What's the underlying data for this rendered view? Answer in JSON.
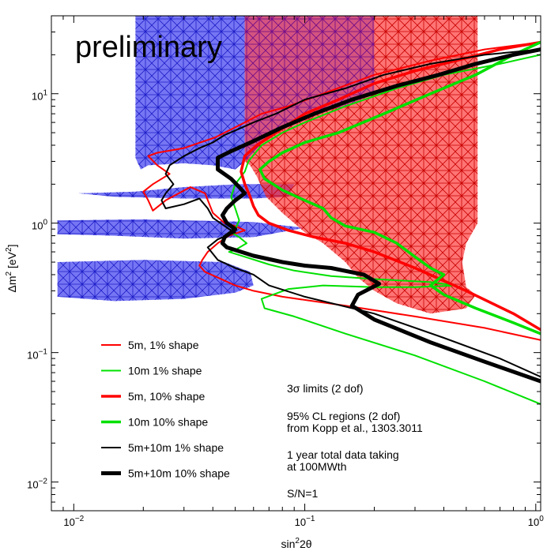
{
  "chart_data": {
    "type": "line",
    "title": "",
    "watermark": "preliminary",
    "xlabel": "sin²2θ",
    "ylabel": "Δm² [eV²]",
    "xscale": "log",
    "yscale": "log",
    "xlim": [
      0.008,
      1.05
    ],
    "ylim": [
      0.006,
      40
    ],
    "xticks": [
      {
        "value": 0.01,
        "base": "10",
        "exp": "−2"
      },
      {
        "value": 0.1,
        "base": "10",
        "exp": "−1"
      },
      {
        "value": 1,
        "base": "10",
        "exp": "0"
      }
    ],
    "yticks": [
      {
        "value": 0.01,
        "base": "10",
        "exp": "−2"
      },
      {
        "value": 0.1,
        "base": "10",
        "exp": "−1"
      },
      {
        "value": 1,
        "base": "10",
        "exp": "0"
      },
      {
        "value": 10,
        "base": "10",
        "exp": "1"
      }
    ],
    "grid": false,
    "legend_position": "bottom-left",
    "regions": [
      {
        "name": "blue-allowed-region",
        "color": "#3838e0",
        "hatch": "#1e1ec8",
        "parts": [
          [
            [
              0.0185,
              40
            ],
            [
              0.055,
              40
            ],
            [
              0.055,
              3.0
            ],
            [
              0.05,
              2.6
            ],
            [
              0.04,
              2.8
            ],
            [
              0.03,
              2.9
            ],
            [
              0.021,
              2.8
            ],
            [
              0.0195,
              2.6
            ],
            [
              0.0185,
              3.2
            ]
          ],
          [
            [
              0.0105,
              1.7
            ],
            [
              0.0185,
              1.75
            ],
            [
              0.03,
              1.9
            ],
            [
              0.052,
              2.0
            ],
            [
              0.09,
              2.0
            ],
            [
              0.085,
              1.6
            ],
            [
              0.06,
              1.55
            ],
            [
              0.03,
              1.55
            ],
            [
              0.015,
              1.6
            ]
          ],
          [
            [
              0.0085,
              1.05
            ],
            [
              0.02,
              1.07
            ],
            [
              0.06,
              1.02
            ],
            [
              0.1,
              0.92
            ],
            [
              0.06,
              0.78
            ],
            [
              0.03,
              0.76
            ],
            [
              0.015,
              0.8
            ],
            [
              0.0085,
              0.82
            ]
          ],
          [
            [
              0.0085,
              0.5
            ],
            [
              0.02,
              0.52
            ],
            [
              0.045,
              0.5
            ],
            [
              0.058,
              0.42
            ],
            [
              0.06,
              0.33
            ],
            [
              0.05,
              0.29
            ],
            [
              0.03,
              0.26
            ],
            [
              0.015,
              0.25
            ],
            [
              0.0085,
              0.27
            ]
          ]
        ]
      },
      {
        "name": "red-allowed-region",
        "color": "#ff3030",
        "hatch": "#d41010",
        "parts": [
          [
            [
              0.055,
              40
            ],
            [
              0.56,
              40
            ],
            [
              0.56,
              1.0
            ],
            [
              0.5,
              0.7
            ],
            [
              0.48,
              0.5
            ],
            [
              0.5,
              0.32
            ],
            [
              0.55,
              0.28
            ],
            [
              0.5,
              0.22
            ],
            [
              0.35,
              0.2
            ],
            [
              0.25,
              0.24
            ],
            [
              0.2,
              0.3
            ],
            [
              0.17,
              0.38
            ],
            [
              0.15,
              0.5
            ],
            [
              0.12,
              0.7
            ],
            [
              0.1,
              0.85
            ],
            [
              0.08,
              1.2
            ],
            [
              0.068,
              1.6
            ],
            [
              0.062,
              2.3
            ],
            [
              0.058,
              2.8
            ],
            [
              0.055,
              3.0
            ]
          ]
        ]
      },
      {
        "name": "purple-overlap",
        "color": "#9040b0",
        "hatch": "#7020a0",
        "parts": [
          [
            [
              0.055,
              40
            ],
            [
              0.2,
              40
            ],
            [
              0.2,
              10
            ],
            [
              0.15,
              8
            ],
            [
              0.1,
              7
            ],
            [
              0.07,
              5
            ],
            [
              0.06,
              3.5
            ],
            [
              0.055,
              3.0
            ]
          ]
        ]
      }
    ],
    "series": [
      {
        "name": "5m, 1% shape",
        "color": "#ff0000",
        "width": 2,
        "points": [
          [
            1.05,
            25
          ],
          [
            0.6,
            22
          ],
          [
            0.35,
            18
          ],
          [
            0.2,
            14
          ],
          [
            0.12,
            10
          ],
          [
            0.085,
            8
          ],
          [
            0.065,
            7
          ],
          [
            0.05,
            5.5
          ],
          [
            0.041,
            4.6
          ],
          [
            0.03,
            3.8
          ],
          [
            0.023,
            3.5
          ],
          [
            0.021,
            3.3
          ],
          [
            0.023,
            2.8
          ],
          [
            0.026,
            2.4
          ],
          [
            0.022,
            2.0
          ],
          [
            0.02,
            1.75
          ],
          [
            0.021,
            1.5
          ],
          [
            0.022,
            1.25
          ],
          [
            0.025,
            1.5
          ],
          [
            0.032,
            1.9
          ],
          [
            0.037,
            1.7
          ],
          [
            0.04,
            1.2
          ],
          [
            0.045,
            1.0
          ],
          [
            0.05,
            0.95
          ],
          [
            0.055,
            0.88
          ],
          [
            0.047,
            0.8
          ],
          [
            0.042,
            0.7
          ],
          [
            0.038,
            0.6
          ],
          [
            0.036,
            0.52
          ],
          [
            0.035,
            0.47
          ],
          [
            0.037,
            0.42
          ],
          [
            0.042,
            0.38
          ],
          [
            0.05,
            0.33
          ],
          [
            0.06,
            0.3
          ],
          [
            0.08,
            0.27
          ],
          [
            0.15,
            0.23
          ],
          [
            0.3,
            0.19
          ],
          [
            0.6,
            0.155
          ],
          [
            1.05,
            0.125
          ]
        ]
      },
      {
        "name": "10m 1% shape",
        "color": "#00e000",
        "width": 2,
        "points": [
          [
            1.05,
            20
          ],
          [
            0.7,
            17
          ],
          [
            0.4,
            14
          ],
          [
            0.25,
            11
          ],
          [
            0.15,
            8
          ],
          [
            0.1,
            6
          ],
          [
            0.08,
            5
          ],
          [
            0.065,
            4
          ],
          [
            0.057,
            3.0
          ],
          [
            0.055,
            2.5
          ],
          [
            0.05,
            2.0
          ],
          [
            0.048,
            1.6
          ],
          [
            0.05,
            1.3
          ],
          [
            0.052,
            1.05
          ],
          [
            0.05,
            0.9
          ],
          [
            0.048,
            0.85
          ],
          [
            0.052,
            0.78
          ],
          [
            0.056,
            0.7
          ],
          [
            0.05,
            0.62
          ],
          [
            0.047,
            0.6
          ],
          [
            0.055,
            0.55
          ],
          [
            0.07,
            0.48
          ],
          [
            0.09,
            0.43
          ],
          [
            0.13,
            0.39
          ],
          [
            0.2,
            0.37
          ],
          [
            0.35,
            0.35
          ],
          [
            0.45,
            0.33
          ],
          [
            0.3,
            0.32
          ],
          [
            0.2,
            0.32
          ],
          [
            0.12,
            0.33
          ],
          [
            0.085,
            0.31
          ],
          [
            0.065,
            0.26
          ],
          [
            0.067,
            0.22
          ],
          [
            0.09,
            0.19
          ],
          [
            0.15,
            0.14
          ],
          [
            0.3,
            0.095
          ],
          [
            0.6,
            0.06
          ],
          [
            1.05,
            0.04
          ]
        ]
      },
      {
        "name": "5m, 10% shape",
        "color": "#ff0000",
        "width": 3.5,
        "points": [
          [
            1.05,
            25
          ],
          [
            0.7,
            22
          ],
          [
            0.45,
            18
          ],
          [
            0.3,
            15
          ],
          [
            0.2,
            12
          ],
          [
            0.14,
            9
          ],
          [
            0.1,
            7
          ],
          [
            0.075,
            5
          ],
          [
            0.062,
            4
          ],
          [
            0.055,
            3.3
          ],
          [
            0.053,
            2.5
          ],
          [
            0.055,
            2.0
          ],
          [
            0.058,
            1.6
          ],
          [
            0.06,
            1.35
          ],
          [
            0.063,
            1.15
          ],
          [
            0.07,
            1.0
          ],
          [
            0.085,
            0.88
          ],
          [
            0.11,
            0.78
          ],
          [
            0.15,
            0.7
          ],
          [
            0.2,
            0.6
          ],
          [
            0.3,
            0.45
          ],
          [
            0.5,
            0.3
          ],
          [
            0.8,
            0.2
          ],
          [
            1.05,
            0.15
          ]
        ]
      },
      {
        "name": "10m 10% shape",
        "color": "#00e000",
        "width": 3.5,
        "points": [
          [
            1.05,
            25
          ],
          [
            0.8,
            20
          ],
          [
            0.55,
            14
          ],
          [
            0.35,
            10
          ],
          [
            0.22,
            7
          ],
          [
            0.14,
            5
          ],
          [
            0.1,
            4.2
          ],
          [
            0.08,
            3.5
          ],
          [
            0.07,
            3.0
          ],
          [
            0.064,
            2.6
          ],
          [
            0.067,
            2.2
          ],
          [
            0.08,
            1.8
          ],
          [
            0.1,
            1.5
          ],
          [
            0.12,
            1.3
          ],
          [
            0.13,
            1.1
          ],
          [
            0.15,
            0.95
          ],
          [
            0.2,
            0.85
          ],
          [
            0.25,
            0.7
          ],
          [
            0.3,
            0.55
          ],
          [
            0.35,
            0.45
          ],
          [
            0.4,
            0.4
          ],
          [
            0.35,
            0.33
          ],
          [
            0.4,
            0.28
          ],
          [
            0.55,
            0.22
          ],
          [
            0.8,
            0.17
          ],
          [
            1.05,
            0.14
          ]
        ]
      },
      {
        "name": "5m+10m 1% shape",
        "color": "#000000",
        "width": 2,
        "points": [
          [
            1.05,
            22
          ],
          [
            0.6,
            20
          ],
          [
            0.35,
            17
          ],
          [
            0.22,
            14
          ],
          [
            0.15,
            11
          ],
          [
            0.1,
            9
          ],
          [
            0.075,
            7
          ],
          [
            0.06,
            6
          ],
          [
            0.05,
            5.2
          ],
          [
            0.045,
            4.8
          ],
          [
            0.04,
            4.2
          ],
          [
            0.035,
            3.8
          ],
          [
            0.03,
            3.3
          ],
          [
            0.026,
            2.8
          ],
          [
            0.025,
            2.4
          ],
          [
            0.027,
            2.0
          ],
          [
            0.025,
            1.7
          ],
          [
            0.024,
            1.5
          ],
          [
            0.025,
            1.3
          ],
          [
            0.03,
            1.4
          ],
          [
            0.035,
            1.55
          ],
          [
            0.038,
            1.3
          ],
          [
            0.04,
            1.1
          ],
          [
            0.047,
            0.9
          ],
          [
            0.05,
            0.85
          ],
          [
            0.042,
            0.75
          ],
          [
            0.038,
            0.65
          ],
          [
            0.04,
            0.58
          ],
          [
            0.042,
            0.52
          ],
          [
            0.05,
            0.45
          ],
          [
            0.06,
            0.4
          ],
          [
            0.07,
            0.33
          ],
          [
            0.1,
            0.27
          ],
          [
            0.2,
            0.2
          ],
          [
            0.4,
            0.13
          ],
          [
            0.7,
            0.09
          ],
          [
            1.05,
            0.065
          ]
        ]
      },
      {
        "name": "5m+10m 10% shape",
        "color": "#000000",
        "width": 5,
        "points": [
          [
            1.05,
            22
          ],
          [
            0.8,
            20
          ],
          [
            0.55,
            17
          ],
          [
            0.38,
            14
          ],
          [
            0.25,
            11.5
          ],
          [
            0.16,
            9
          ],
          [
            0.11,
            7
          ],
          [
            0.08,
            5.5
          ],
          [
            0.06,
            4.3
          ],
          [
            0.048,
            3.6
          ],
          [
            0.042,
            3.2
          ],
          [
            0.042,
            2.6
          ],
          [
            0.048,
            2.2
          ],
          [
            0.052,
            1.9
          ],
          [
            0.055,
            1.7
          ],
          [
            0.05,
            1.5
          ],
          [
            0.046,
            1.3
          ],
          [
            0.044,
            1.15
          ],
          [
            0.046,
            1.0
          ],
          [
            0.05,
            0.9
          ],
          [
            0.048,
            0.85
          ],
          [
            0.045,
            0.78
          ],
          [
            0.044,
            0.7
          ],
          [
            0.046,
            0.65
          ],
          [
            0.06,
            0.56
          ],
          [
            0.08,
            0.5
          ],
          [
            0.1,
            0.47
          ],
          [
            0.13,
            0.45
          ],
          [
            0.18,
            0.4
          ],
          [
            0.21,
            0.34
          ],
          [
            0.17,
            0.28
          ],
          [
            0.16,
            0.23
          ],
          [
            0.2,
            0.18
          ],
          [
            0.35,
            0.12
          ],
          [
            0.6,
            0.085
          ],
          [
            1.05,
            0.06
          ]
        ]
      }
    ],
    "annotations": [
      {
        "name": "sigma-note",
        "text": "3σ limits (2 dof)"
      },
      {
        "name": "cl-note-1",
        "text": "95% CL regions (2 dof)"
      },
      {
        "name": "cl-note-2",
        "text": "from Kopp et al., 1303.3011"
      },
      {
        "name": "year-note-1",
        "text": "1 year total data taking"
      },
      {
        "name": "year-note-2",
        "text": "at 100MWth"
      },
      {
        "name": "sn-note",
        "text": "S/N=1"
      }
    ]
  }
}
